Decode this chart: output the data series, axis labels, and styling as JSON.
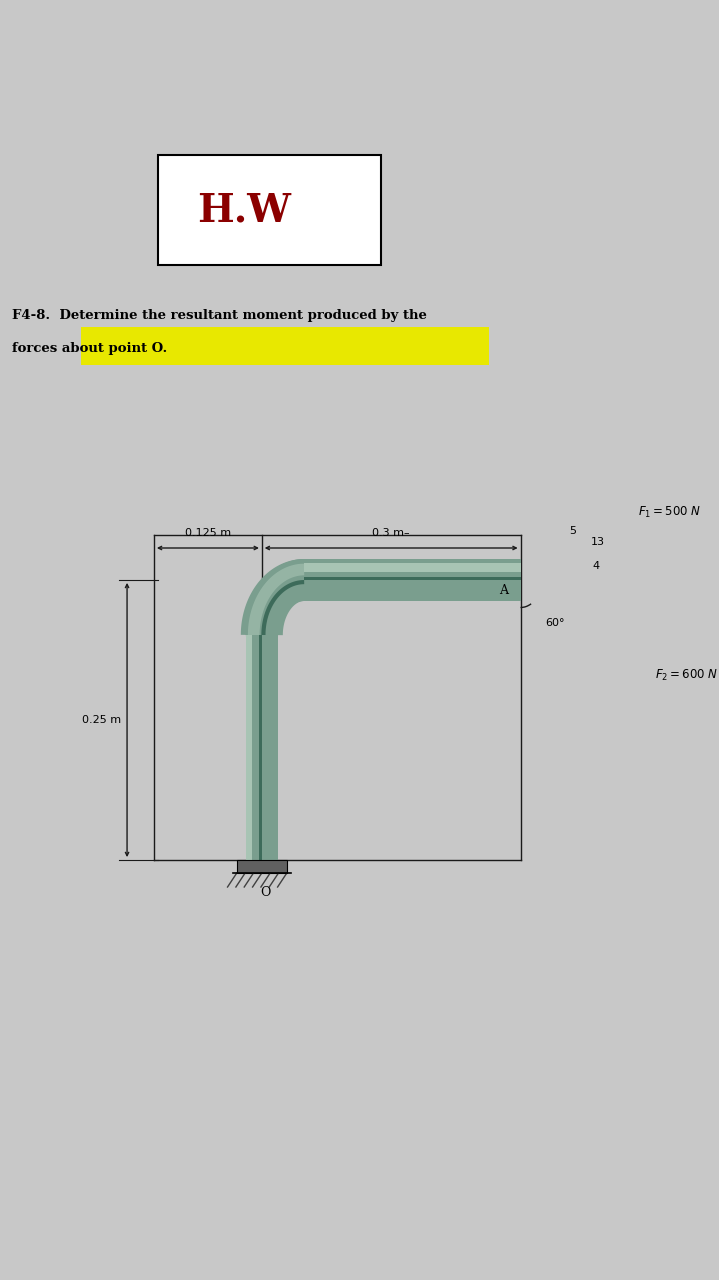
{
  "bg_color": "#c8c8c8",
  "paper_color": "#e8e8e8",
  "title_text": "H.W",
  "title_color": "#8B0000",
  "problem_text_line1": "F4-8.  Determine the resultant moment produced by the",
  "problem_text_line2": "forces about point O.",
  "F1_label": "$F_1 = 500$ N",
  "F2_label": "$F_2 = 600$ N",
  "dim_125": "0.125 m",
  "dim_03": "0.3 m–",
  "dim_025": "0.25 m",
  "angle_label": "60°",
  "A_label": "A",
  "O_label": "O",
  "ratio_label_5": "5",
  "ratio_label_13": "13",
  "ratio_label_4": "4",
  "beam_color_main": "#7a9e8e",
  "beam_color_light": "#a8c4b4",
  "beam_color_dark": "#3d6b5a",
  "beam_color_inner": "#5a8272",
  "line_color": "#1a1a1a",
  "highlight_color": "#e8e800",
  "box_bg": "#ffffff"
}
